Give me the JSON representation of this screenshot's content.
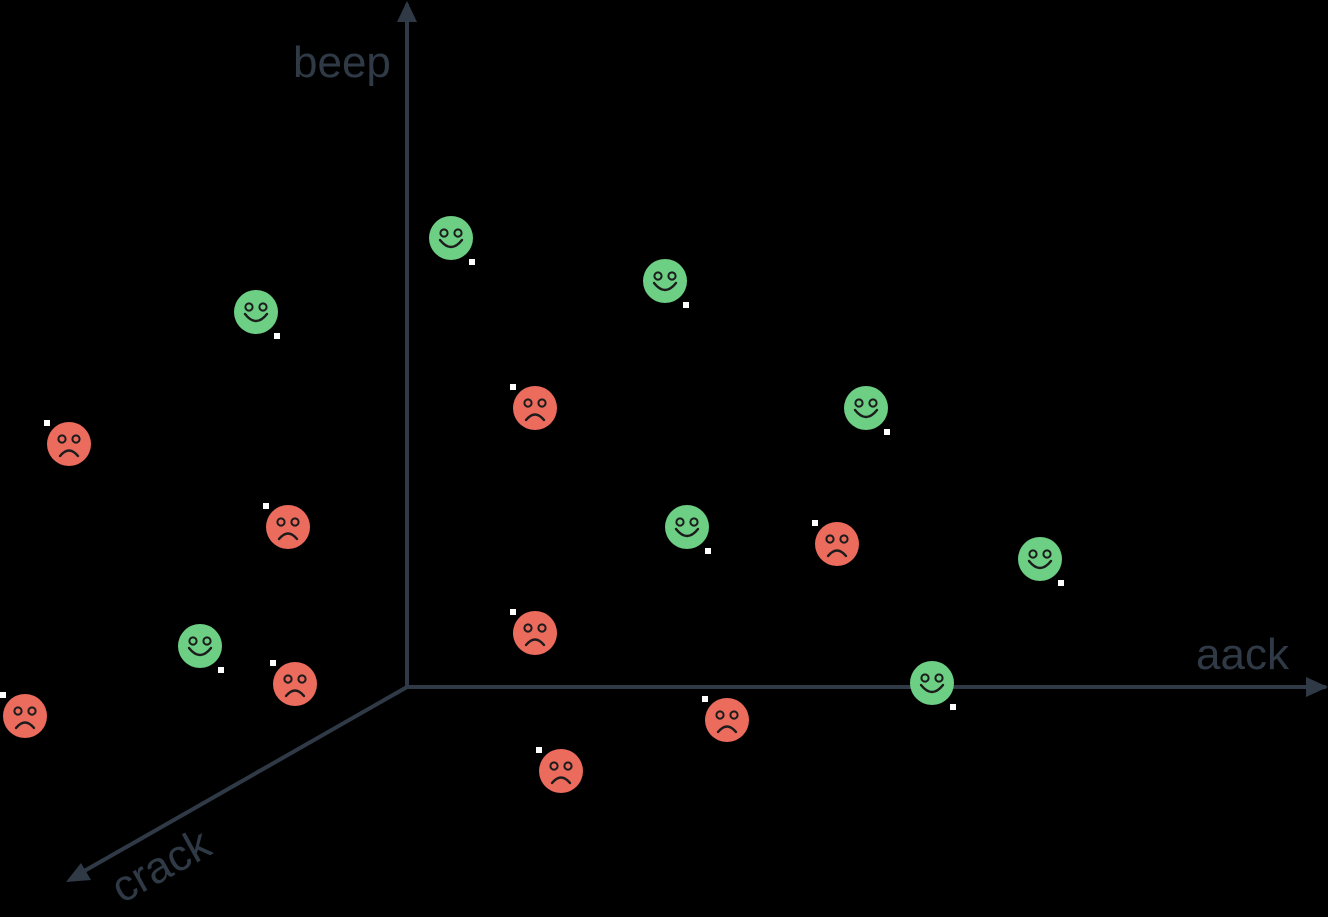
{
  "axes": {
    "aack": "aack",
    "beep": "beep",
    "crack": "crack"
  },
  "colors": {
    "axis": "#2f3a46",
    "happy": "#6ccf84",
    "sad": "#eb6b5d",
    "face_features": "#1c1c1c",
    "marker": "#ffffff"
  },
  "points": [
    {
      "mood": "happy",
      "icon": "smiley-face-icon"
    },
    {
      "mood": "happy",
      "icon": "smiley-face-icon"
    },
    {
      "mood": "happy",
      "icon": "smiley-face-icon"
    },
    {
      "mood": "happy",
      "icon": "smiley-face-icon"
    },
    {
      "mood": "happy",
      "icon": "smiley-face-icon"
    },
    {
      "mood": "happy",
      "icon": "smiley-face-icon"
    },
    {
      "mood": "happy",
      "icon": "smiley-face-icon"
    },
    {
      "mood": "happy",
      "icon": "smiley-face-icon"
    },
    {
      "mood": "sad",
      "icon": "frowny-face-icon"
    },
    {
      "mood": "sad",
      "icon": "frowny-face-icon"
    },
    {
      "mood": "sad",
      "icon": "frowny-face-icon"
    },
    {
      "mood": "sad",
      "icon": "frowny-face-icon"
    },
    {
      "mood": "sad",
      "icon": "frowny-face-icon"
    },
    {
      "mood": "sad",
      "icon": "frowny-face-icon"
    },
    {
      "mood": "sad",
      "icon": "frowny-face-icon"
    },
    {
      "mood": "sad",
      "icon": "frowny-face-icon"
    },
    {
      "mood": "sad",
      "icon": "frowny-face-icon"
    }
  ]
}
